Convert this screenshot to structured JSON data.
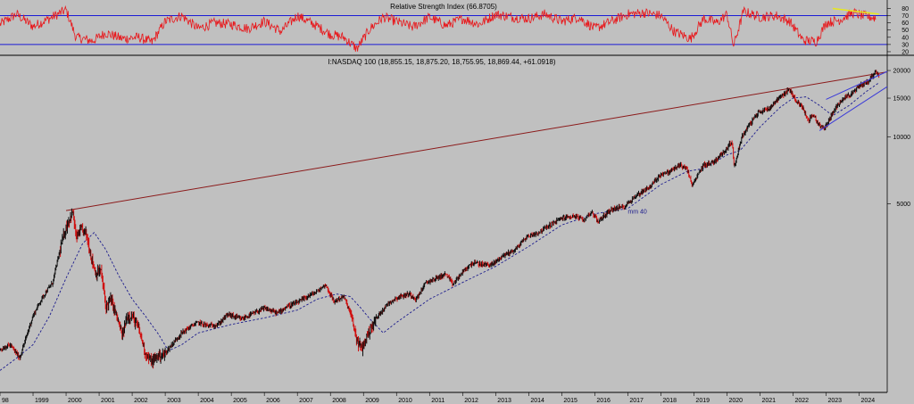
{
  "colors": {
    "background": "#c0c0c0",
    "rsi_line": "#e8171b",
    "rsi_level": "#1a1ad6",
    "rsi_trend": "#e8e81a",
    "price_up": "#101010",
    "price_down": "#d01010",
    "ma": "#1a1a8c",
    "resistance": "#8b1a1a",
    "wedge": "#3a3ad8",
    "panel_separator": "#000000",
    "grid_text": "#000000"
  },
  "chart_data": [
    {
      "type": "line",
      "title": "Relative Strength Index (66.8705)",
      "y_ticks": [
        80,
        70,
        60,
        50,
        40,
        30,
        20
      ],
      "ylim": [
        15,
        88
      ],
      "levels": [
        30,
        70
      ],
      "series": [
        {
          "x": [
            1998.0,
            1998.5,
            1999.0,
            1999.5,
            2000.0,
            2000.3,
            2000.8,
            2001.2,
            2001.7,
            2002.2,
            2002.6,
            2003.0,
            2003.5,
            2004.0,
            2004.5,
            2005.0,
            2005.5,
            2006.0,
            2006.5,
            2007.0,
            2007.5,
            2008.0,
            2008.4,
            2008.8,
            2009.2,
            2009.6,
            2010.0,
            2010.5,
            2011.0,
            2011.5,
            2012.0,
            2012.5,
            2013.0,
            2013.5,
            2014.0,
            2014.5,
            2015.0,
            2015.5,
            2016.0,
            2016.5,
            2017.0,
            2017.5,
            2018.0,
            2018.4,
            2018.9,
            2019.3,
            2019.7,
            2020.0,
            2020.2,
            2020.5,
            2021.0,
            2021.5,
            2021.9,
            2022.3,
            2022.7,
            2023.0,
            2023.4,
            2023.8,
            2024.1,
            2024.5
          ],
          "values": [
            58,
            72,
            55,
            66,
            78,
            40,
            35,
            46,
            38,
            40,
            33,
            62,
            70,
            52,
            60,
            58,
            52,
            62,
            48,
            70,
            58,
            44,
            40,
            24,
            52,
            68,
            62,
            54,
            68,
            56,
            66,
            58,
            72,
            68,
            66,
            72,
            62,
            68,
            52,
            62,
            72,
            74,
            70,
            48,
            38,
            66,
            60,
            72,
            28,
            76,
            68,
            70,
            62,
            36,
            34,
            60,
            64,
            74,
            70,
            67
          ]
        }
      ],
      "trendline": {
        "x": [
          2023.2,
          2024.6
        ],
        "values": [
          80,
          72
        ]
      }
    },
    {
      "type": "line",
      "title": "I:NASDAQ 100 (18,855.15, 18,875.20, 18,755.95, 18,869.44, +61.0918)",
      "scale": "log",
      "ylim": [
        700,
        23000
      ],
      "y_ticks": [
        20000,
        15000,
        10000,
        5000
      ],
      "xlim": [
        1998.0,
        2024.85
      ],
      "x_ticks": [
        "98",
        "1999",
        "2000",
        "2001",
        "2002",
        "2003",
        "2004",
        "2005",
        "2006",
        "2007",
        "2008",
        "2009",
        "2010",
        "2011",
        "2012",
        "2013",
        "2014",
        "2015",
        "2016",
        "2017",
        "2018",
        "2019",
        "2020",
        "2021",
        "2022",
        "2023",
        "2024"
      ],
      "x_tick_values": [
        1998,
        1999,
        2000,
        2001,
        2002,
        2003,
        2004,
        2005,
        2006,
        2007,
        2008,
        2009,
        2010,
        2011,
        2012,
        2013,
        2014,
        2015,
        2016,
        2017,
        2018,
        2019,
        2020,
        2021,
        2022,
        2023,
        2024
      ],
      "series": [
        {
          "name": "price",
          "x": [
            1998.0,
            1998.3,
            1998.6,
            1998.8,
            1999.0,
            1999.3,
            1999.6,
            1999.8,
            2000.0,
            2000.2,
            2000.3,
            2000.45,
            2000.6,
            2000.75,
            2000.9,
            2001.05,
            2001.2,
            2001.35,
            2001.5,
            2001.7,
            2001.85,
            2002.0,
            2002.2,
            2002.4,
            2002.6,
            2002.78,
            2002.95,
            2003.2,
            2003.5,
            2003.8,
            2004.0,
            2004.3,
            2004.6,
            2004.9,
            2005.3,
            2005.7,
            2006.0,
            2006.4,
            2006.7,
            2007.0,
            2007.3,
            2007.6,
            2007.85,
            2008.1,
            2008.4,
            2008.6,
            2008.8,
            2008.95,
            2009.2,
            2009.5,
            2009.8,
            2010.1,
            2010.4,
            2010.6,
            2010.9,
            2011.2,
            2011.5,
            2011.7,
            2012.0,
            2012.3,
            2012.6,
            2012.9,
            2013.2,
            2013.6,
            2013.95,
            2014.3,
            2014.7,
            2015.0,
            2015.4,
            2015.65,
            2015.9,
            2016.1,
            2016.5,
            2016.9,
            2017.3,
            2017.7,
            2018.0,
            2018.2,
            2018.6,
            2018.8,
            2018.95,
            2019.3,
            2019.6,
            2019.95,
            2020.15,
            2020.22,
            2020.45,
            2020.7,
            2020.95,
            2021.3,
            2021.6,
            2021.9,
            2022.1,
            2022.3,
            2022.45,
            2022.6,
            2022.8,
            2022.95,
            2023.2,
            2023.5,
            2023.8,
            2024.0,
            2024.3,
            2024.5,
            2024.6
          ],
          "values": [
            1090,
            1150,
            1000,
            1250,
            1550,
            1900,
            2200,
            3000,
            3900,
            4600,
            3500,
            3800,
            3700,
            2900,
            2400,
            2500,
            1700,
            1850,
            1600,
            1250,
            1550,
            1550,
            1350,
            1050,
            960,
            1030,
            1030,
            1150,
            1300,
            1400,
            1450,
            1400,
            1420,
            1580,
            1500,
            1600,
            1680,
            1600,
            1720,
            1780,
            1900,
            2000,
            2150,
            1800,
            1900,
            1600,
            1200,
            1100,
            1350,
            1600,
            1800,
            1900,
            1950,
            1850,
            2200,
            2300,
            2400,
            2150,
            2450,
            2700,
            2650,
            2650,
            2900,
            3100,
            3550,
            3700,
            4050,
            4300,
            4400,
            4200,
            4600,
            4150,
            4700,
            4850,
            5500,
            6000,
            6800,
            6900,
            7500,
            7100,
            6000,
            7500,
            7700,
            8700,
            9600,
            7200,
            10000,
            11500,
            12900,
            13600,
            15200,
            16400,
            14500,
            13600,
            11800,
            12600,
            11300,
            10900,
            12800,
            15000,
            15700,
            17000,
            18000,
            19800,
            18870
          ]
        },
        {
          "name": "mm 40",
          "x": [
            1998.0,
            1998.5,
            1999.0,
            1999.5,
            2000.0,
            2000.5,
            2000.85,
            2001.2,
            2001.6,
            2002.0,
            2002.4,
            2002.8,
            2003.1,
            2003.5,
            2004.0,
            2005.0,
            2006.0,
            2007.0,
            2007.6,
            2008.2,
            2008.6,
            2008.9,
            2009.2,
            2009.6,
            2010.0,
            2011.0,
            2012.0,
            2013.0,
            2014.0,
            2015.0,
            2016.0,
            2017.0,
            2018.0,
            2018.8,
            2019.3,
            2020.0,
            2020.4,
            2021.0,
            2021.6,
            2022.0,
            2022.4,
            2022.8,
            2023.2,
            2023.7,
            2024.2,
            2024.6
          ],
          "values": [
            880,
            1000,
            1150,
            1550,
            2300,
            3300,
            3700,
            3100,
            2350,
            1850,
            1550,
            1280,
            1080,
            1150,
            1300,
            1420,
            1520,
            1650,
            1850,
            1950,
            1900,
            1700,
            1500,
            1300,
            1450,
            1850,
            2200,
            2600,
            3200,
            4000,
            4500,
            4750,
            6100,
            7000,
            7200,
            8300,
            8700,
            11100,
            13600,
            15000,
            15200,
            13900,
            12500,
            13900,
            16000,
            17600
          ]
        }
      ],
      "ma_label": "mm 40",
      "ma_label_pos": {
        "x": 2017.0,
        "y": 4500
      },
      "resistance_line": {
        "x": [
          2000.0,
          2024.85
        ],
        "values": [
          4650,
          19700
        ]
      },
      "wedge_upper": {
        "x": [
          2023.0,
          2024.85
        ],
        "values": [
          14800,
          19800
        ]
      },
      "wedge_lower": {
        "x": [
          2022.8,
          2024.85
        ],
        "values": [
          10700,
          16900
        ]
      }
    }
  ]
}
